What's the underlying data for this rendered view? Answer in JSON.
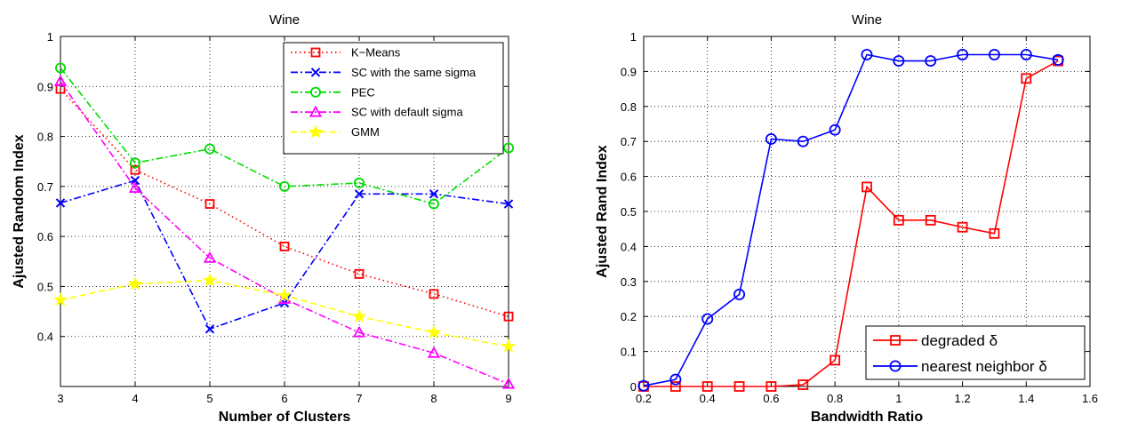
{
  "chart_data": [
    {
      "type": "line",
      "title": "Wine",
      "xlabel": "Number of Clusters",
      "ylabel": "Ajusted Random Index",
      "xlim": [
        3,
        9
      ],
      "ylim": [
        0.3,
        1.0
      ],
      "xticks": [
        "3",
        "4",
        "5",
        "6",
        "7",
        "8",
        "9"
      ],
      "yticks": [
        "0.4",
        "0.5",
        "0.6",
        "0.7",
        "0.8",
        "0.9",
        "1"
      ],
      "grid": true,
      "legend_position": "top-right",
      "x": [
        3,
        4,
        5,
        6,
        7,
        8,
        9
      ],
      "series": [
        {
          "name": "K−Means",
          "color": "#ff0000",
          "marker": "square",
          "dash": "dotted",
          "values": [
            0.895,
            0.733,
            0.665,
            0.58,
            0.525,
            0.485,
            0.44
          ]
        },
        {
          "name": "SC with the same sigma",
          "color": "#0000ff",
          "marker": "x",
          "dash": "dashdot",
          "values": [
            0.667,
            0.712,
            0.415,
            0.467,
            0.685,
            0.685,
            0.665
          ]
        },
        {
          "name": "PEC",
          "color": "#00dd00",
          "marker": "circle",
          "dash": "dashdot",
          "values": [
            0.937,
            0.747,
            0.775,
            0.7,
            0.707,
            0.665,
            0.777
          ]
        },
        {
          "name": "SC with default sigma",
          "color": "#ff00ff",
          "marker": "triangle",
          "dash": "dashdot",
          "values": [
            0.91,
            0.697,
            0.557,
            0.475,
            0.408,
            0.367,
            0.305
          ]
        },
        {
          "name": "GMM",
          "color": "#ffff00",
          "marker": "star",
          "dash": "dashed",
          "values": [
            0.473,
            0.505,
            0.512,
            0.482,
            0.44,
            0.408,
            0.38
          ]
        }
      ]
    },
    {
      "type": "line",
      "title": "Wine",
      "xlabel": "Bandwidth Ratio",
      "ylabel": "Ajusted Rand Index",
      "xlim": [
        0.2,
        1.6
      ],
      "ylim": [
        0,
        1
      ],
      "xticks": [
        "0.2",
        "0.4",
        "0.6",
        "0.8",
        "1",
        "1.2",
        "1.4",
        "1.6"
      ],
      "yticks": [
        "0",
        "0.1",
        "0.2",
        "0.3",
        "0.4",
        "0.5",
        "0.6",
        "0.7",
        "0.8",
        "0.9",
        "1"
      ],
      "grid": true,
      "legend_position": "bottom-right",
      "x": [
        0.2,
        0.3,
        0.4,
        0.5,
        0.6,
        0.7,
        0.8,
        0.9,
        1.0,
        1.1,
        1.2,
        1.3,
        1.4,
        1.5
      ],
      "series": [
        {
          "name": "degraded δ",
          "color": "#ff0000",
          "marker": "square",
          "dash": "solid",
          "values": [
            0.0,
            0.0,
            0.0,
            0.0,
            0.0,
            0.005,
            0.075,
            0.57,
            0.475,
            0.475,
            0.455,
            0.437,
            0.88,
            0.93
          ]
        },
        {
          "name": "nearest neighbor δ",
          "color": "#0000ff",
          "marker": "circle",
          "dash": "solid",
          "values": [
            0.002,
            0.02,
            0.193,
            0.263,
            0.707,
            0.7,
            0.733,
            0.948,
            0.93,
            0.93,
            0.948,
            0.948,
            0.948,
            0.933
          ]
        }
      ]
    }
  ]
}
